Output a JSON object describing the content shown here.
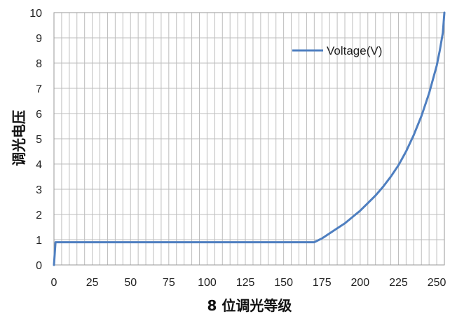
{
  "chart_data": {
    "type": "line",
    "title": "",
    "xlabel": "8 位调光等级",
    "ylabel": "调光电压",
    "xlim": [
      0,
      255
    ],
    "ylim": [
      0,
      10
    ],
    "xticks": [
      0,
      25,
      50,
      75,
      100,
      125,
      150,
      175,
      200,
      225,
      250
    ],
    "yticks": [
      0,
      1,
      2,
      3,
      4,
      5,
      6,
      7,
      8,
      9,
      10
    ],
    "grid": true,
    "legend_position": "top-right",
    "series": [
      {
        "name": "Voltage(V)",
        "color": "#4f7fc0",
        "x": [
          0,
          1,
          2,
          170,
          175,
          180,
          185,
          190,
          195,
          200,
          205,
          210,
          215,
          220,
          225,
          230,
          235,
          240,
          245,
          250,
          252,
          254,
          255
        ],
        "y": [
          0,
          0.9,
          0.9,
          0.9,
          1.05,
          1.25,
          1.45,
          1.65,
          1.9,
          2.15,
          2.45,
          2.75,
          3.1,
          3.5,
          3.95,
          4.5,
          5.15,
          5.9,
          6.8,
          7.9,
          8.5,
          9.2,
          10
        ]
      }
    ]
  }
}
